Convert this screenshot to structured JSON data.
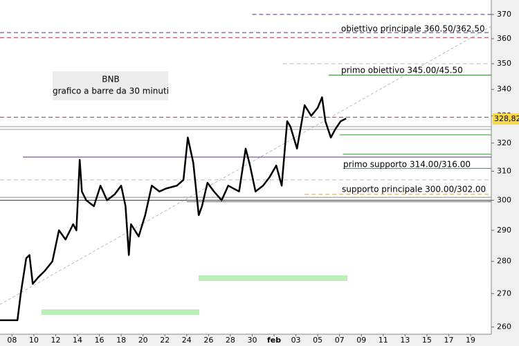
{
  "chart_data": {
    "type": "line",
    "title": "BNB",
    "subtitle": "grafico a barre da 30 minuti",
    "log_scale": true,
    "xlim": [
      -1.1,
      43.9
    ],
    "ylim": [
      257.9,
      376.1
    ],
    "xticks": [
      {
        "value": 0,
        "label": "08"
      },
      {
        "value": 2,
        "label": "10"
      },
      {
        "value": 4,
        "label": "12"
      },
      {
        "value": 6,
        "label": "14"
      },
      {
        "value": 8,
        "label": "16"
      },
      {
        "value": 10,
        "label": "18"
      },
      {
        "value": 12,
        "label": "20"
      },
      {
        "value": 14,
        "label": "22"
      },
      {
        "value": 16,
        "label": "24"
      },
      {
        "value": 18,
        "label": "26"
      },
      {
        "value": 20,
        "label": "28"
      },
      {
        "value": 22,
        "label": "30"
      },
      {
        "value": 24,
        "label": "feb"
      },
      {
        "value": 26,
        "label": "03"
      },
      {
        "value": 28,
        "label": "05"
      },
      {
        "value": 30,
        "label": "07"
      },
      {
        "value": 32,
        "label": "09"
      },
      {
        "value": 34,
        "label": "11"
      },
      {
        "value": 36,
        "label": "13"
      },
      {
        "value": 38,
        "label": "15"
      },
      {
        "value": 40,
        "label": "17"
      },
      {
        "value": 42,
        "label": "19"
      }
    ],
    "yticks": [
      260,
      270,
      280,
      290,
      300,
      310,
      320,
      330,
      340,
      350,
      360,
      370
    ],
    "series": [
      {
        "name": "BNB",
        "color": "#000000",
        "x": [
          -1.1,
          0.5,
          0.8,
          1.3,
          1.6,
          1.9,
          2.4,
          3.0,
          3.7,
          4.3,
          4.9,
          5.6,
          5.9,
          6.2,
          6.4,
          6.8,
          7.5,
          8.1,
          8.7,
          9.4,
          10.0,
          10.4,
          10.7,
          10.9,
          11.6,
          12.2,
          12.8,
          13.5,
          14.1,
          15.1,
          15.7,
          16.1,
          16.6,
          17.1,
          17.4,
          17.9,
          18.5,
          19.2,
          19.8,
          20.8,
          21.4,
          21.8,
          22.3,
          23.0,
          23.6,
          24.2,
          24.7,
          25.2,
          25.5,
          26.1,
          26.8,
          27.4,
          28.0,
          28.4,
          28.7,
          29.2,
          29.6,
          30.1,
          30.6
        ],
        "values": [
          262,
          262,
          270,
          281,
          282,
          273,
          275,
          277,
          280,
          290,
          287,
          292,
          290,
          314,
          303,
          300,
          298,
          305,
          300,
          302,
          305,
          298,
          282,
          292,
          288,
          295,
          305,
          303,
          304,
          305,
          307,
          322,
          313,
          295,
          298,
          306,
          303,
          300,
          305,
          303,
          318,
          312,
          303,
          305,
          308,
          312,
          305,
          328,
          326,
          318,
          334,
          330,
          333,
          337,
          328,
          322,
          325,
          328,
          329
        ]
      }
    ],
    "levels": [
      {
        "value": 370,
        "color": "#5a2a80",
        "dashed": true,
        "x0": 22
      },
      {
        "value": 362.5,
        "color": "#5a2a80",
        "dashed": true,
        "x0": -1.1
      },
      {
        "value": 360.5,
        "color": "#c03030",
        "dashed": true,
        "x0": -1.1
      },
      {
        "value": 350,
        "color": "#bbbbbb",
        "dashed": true,
        "x0": 24.8
      },
      {
        "value": 345.5,
        "color": "#2a7a2a",
        "dashed": false,
        "x0": 29
      },
      {
        "value": 329.5,
        "color": "#c03030",
        "dashed": true,
        "x0": -1.1
      },
      {
        "value": 326,
        "color": "#999999",
        "dashed": false,
        "x0": -1.1
      },
      {
        "value": 325,
        "color": "#999999",
        "dashed": false,
        "x0": -1.1
      },
      {
        "value": 323,
        "color": "#2a9a2a",
        "dashed": false,
        "x0": 30
      },
      {
        "value": 316,
        "color": "#2a9a2a",
        "dashed": false,
        "x0": 30.3
      },
      {
        "value": 315,
        "color": "#5a2a80",
        "dashed": false,
        "x0": 1
      },
      {
        "value": 311,
        "color": "#2a9a2a",
        "dashed": false,
        "x0": 30.3
      },
      {
        "value": 307,
        "color": "#bbbbbb",
        "dashed": true,
        "x0": -1.1
      },
      {
        "value": 302,
        "color": "#e0a040",
        "dashed": true,
        "x0": 26.8
      },
      {
        "value": 301,
        "color": "#888888",
        "dashed": false,
        "x0": -1.1
      },
      {
        "value": 300,
        "color": "#333333",
        "dashed": false,
        "x0": -1.1
      },
      {
        "value": 299.5,
        "color": "#2a9a2a",
        "dashed": false,
        "x0": 16
      }
    ],
    "annotations": [
      "obiettivo principale 360.50/362.50",
      "primo obiettivo 345.00/45.50",
      "primo supporto 314.00/316.00",
      "supporto principale 300.00/302.00"
    ],
    "last_price": {
      "value": 328.82,
      "label": "328,82"
    }
  }
}
